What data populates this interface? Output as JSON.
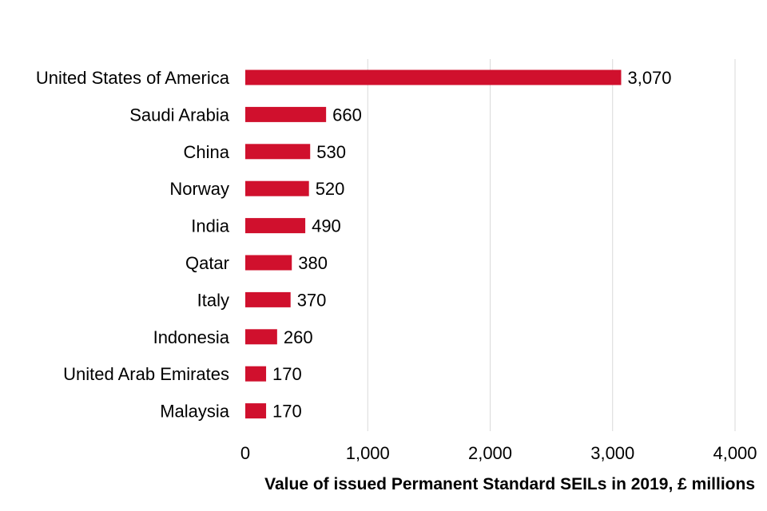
{
  "chart_data": {
    "type": "bar",
    "orientation": "horizontal",
    "categories": [
      "United States of America",
      "Saudi Arabia",
      "China",
      "Norway",
      "India",
      "Qatar",
      "Italy",
      "Indonesia",
      "United Arab Emirates",
      "Malaysia"
    ],
    "values": [
      3070,
      660,
      530,
      520,
      490,
      380,
      370,
      260,
      170,
      170
    ],
    "value_labels": [
      "3,070",
      "660",
      "530",
      "520",
      "490",
      "380",
      "370",
      "260",
      "170",
      "170"
    ],
    "title": "",
    "xlabel": "Value of issued Permanent Standard SEILs in 2019, £ millions",
    "ylabel": "",
    "xlim": [
      0,
      4000
    ],
    "xticks": [
      0,
      1000,
      2000,
      3000,
      4000
    ],
    "xtick_labels": [
      "0",
      "1,000",
      "2,000",
      "3,000",
      "4,000"
    ],
    "grid": true,
    "bar_color": "#d0102d",
    "grid_color": "#d9d9d9"
  }
}
